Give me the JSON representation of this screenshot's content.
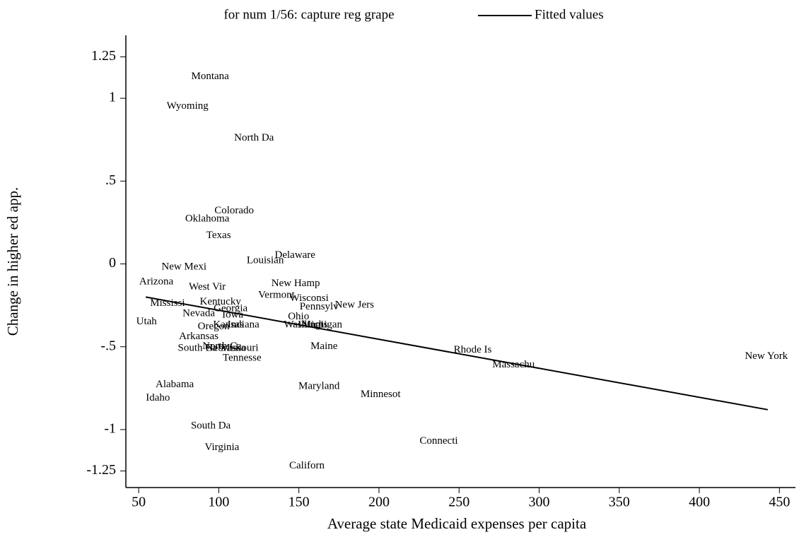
{
  "chart_data": {
    "type": "scatter",
    "xlabel": "Average state Medicaid expenses per capita",
    "ylabel": "Change in higher ed app.",
    "xlim": [
      42,
      460
    ],
    "ylim": [
      -1.35,
      1.38
    ],
    "xticks": [
      50,
      100,
      150,
      200,
      250,
      300,
      350,
      400,
      450
    ],
    "yticks": [
      -1.25,
      -1,
      {
        "value": -0.5,
        "label": "-.5"
      },
      0,
      {
        "value": 0.5,
        "label": ".5"
      },
      1,
      1.25
    ],
    "series": [
      {
        "name": "for num 1/56: capture reg grape",
        "color": "#000000",
        "labels": [
          "Montana",
          "Wyoming",
          "North Da",
          "Colorado",
          "Oklahoma",
          "Texas",
          "Delaware",
          "Louisian",
          "New Mexi",
          "Arizona",
          "West Vir",
          "New Hamp",
          "Vermont",
          "Wisconsi",
          "Mississi",
          "Kentucky",
          "Pennsylv",
          "New Jers",
          "Georgia",
          "Nevada",
          "Iowa",
          "Ohio",
          "Utah",
          "Oregon",
          "Kansas",
          "Indiana",
          "Washingt",
          "Illinois",
          "Michigan",
          "Arkansas",
          "South Ca",
          "North Ca",
          "Nebraska",
          "Missouri",
          "Tennesse",
          "Maine",
          "Rhode Is",
          "Massachu",
          "New York",
          "Alabama",
          "Maryland",
          "Minnesot",
          "Idaho",
          "South Da",
          "Connecti",
          "Virginia",
          "Californ"
        ],
        "x": [
          94.6,
          80.5,
          122,
          109.6,
          92.8,
          99.9,
          147.6,
          129,
          78.3,
          61,
          92.8,
          148,
          136,
          156.4,
          68,
          101,
          162.6,
          184.7,
          107.4,
          87.5,
          108.7,
          149.8,
          54.9,
          96.8,
          106,
          115.4,
          153,
          158.7,
          164.4,
          87.5,
          86.7,
          102,
          104.3,
          113,
          114.5,
          165.7,
          258.5,
          284,
          441.8,
          72.5,
          162.6,
          201,
          62,
          95,
          237.3,
          102,
          155
        ],
        "values": [
          1.13,
          0.95,
          0.76,
          0.32,
          0.27,
          0.17,
          0.05,
          0.02,
          -0.02,
          -0.11,
          -0.14,
          -0.12,
          -0.19,
          -0.21,
          -0.24,
          -0.23,
          -0.26,
          -0.25,
          -0.27,
          -0.3,
          -0.31,
          -0.32,
          -0.35,
          -0.38,
          -0.37,
          -0.37,
          -0.37,
          -0.37,
          -0.37,
          -0.44,
          -0.51,
          -0.5,
          -0.51,
          -0.51,
          -0.57,
          -0.5,
          -0.52,
          -0.61,
          -0.56,
          -0.73,
          -0.74,
          -0.79,
          -0.81,
          -0.98,
          -1.07,
          -1.11,
          -1.22
        ]
      },
      {
        "name": "Fitted values",
        "type": "line",
        "color": "#000000",
        "x": [
          54.4,
          442.7
        ],
        "values": [
          -0.2,
          -0.88
        ]
      }
    ]
  }
}
